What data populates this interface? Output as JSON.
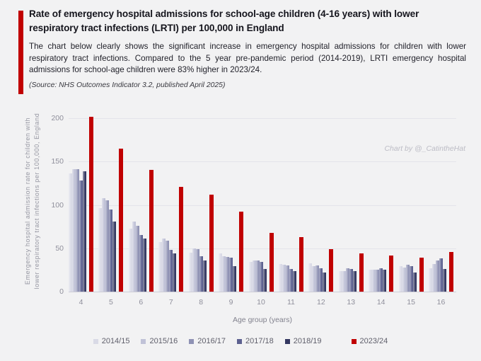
{
  "header": {
    "title": "Rate of emergency hospital admissions for school-age children (4-16 years) with lower respiratory tract infections (LRTI) per 100,000 in England",
    "subtitle": "The chart below clearly shows the significant increase in emergency hospital admissions for children with lower respiratory tract infections. Compared to the 5 year pre-pandemic period (2014-2019), LRTI emergency hospital admissions for school-age children were 83% higher in 2023/24.",
    "source": "(Source: NHS Outcomes Indicator 3.2, published April 2025)",
    "accent_color": "#c00000"
  },
  "watermark": "Chart by @_CatintheHat",
  "chart_data": {
    "type": "bar",
    "title": "",
    "xlabel": "Age group (years)",
    "ylabel": "Emergency hospital admission rate for children with lower respiratory tract infections per 100,000, England",
    "categories": [
      "4",
      "5",
      "6",
      "7",
      "8",
      "9",
      "10",
      "11",
      "12",
      "13",
      "14",
      "15",
      "16"
    ],
    "yticks": [
      0,
      50,
      100,
      150,
      200
    ],
    "ylim": [
      0,
      210
    ],
    "grid": true,
    "legend_position": "bottom",
    "series": [
      {
        "name": "2014/15",
        "color": "#d9dae6",
        "values": [
          136,
          96,
          73,
          57,
          45,
          44,
          34,
          32,
          33,
          24,
          25,
          29,
          27
        ]
      },
      {
        "name": "2015/16",
        "color": "#c0c2d7",
        "values": [
          141,
          108,
          81,
          61,
          50,
          41,
          36,
          31,
          29,
          24,
          25,
          28,
          32
        ]
      },
      {
        "name": "2016/17",
        "color": "#8f92b4",
        "values": [
          141,
          105,
          76,
          59,
          49,
          40,
          36,
          30,
          30,
          27,
          25,
          31,
          36
        ]
      },
      {
        "name": "2017/18",
        "color": "#5d6190",
        "values": [
          128,
          95,
          65,
          48,
          41,
          39,
          34,
          26,
          27,
          26,
          27,
          29,
          38
        ]
      },
      {
        "name": "2018/19",
        "color": "#333760",
        "values": [
          139,
          81,
          61,
          44,
          36,
          29,
          26,
          24,
          22,
          24,
          25,
          22,
          26
        ]
      },
      {
        "name": "2023/24",
        "color": "#c00000",
        "values": [
          202,
          165,
          140,
          121,
          112,
          92,
          68,
          63,
          49,
          44,
          42,
          39,
          46
        ]
      }
    ]
  }
}
